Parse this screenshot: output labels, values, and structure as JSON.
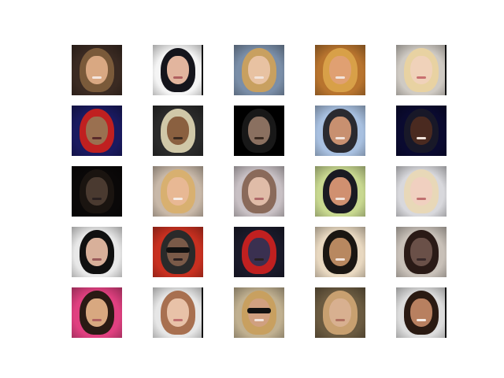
{
  "grid": {
    "rows": 5,
    "cols": 5,
    "tiles": [
      {
        "bg": "#3a2a22",
        "hair": "#7a5a3a",
        "skin": "#d9a882",
        "mouth": "#f4e6df",
        "glasses": false,
        "edge": false
      },
      {
        "bg": "#f4f4f4",
        "hair": "#15151c",
        "skin": "#e2b59e",
        "mouth": "#b06060",
        "glasses": false,
        "edge": true
      },
      {
        "bg": "#7a8ea8",
        "hair": "#c8a060",
        "skin": "#e8c2a2",
        "mouth": "#f2e4dc",
        "glasses": false,
        "edge": false
      },
      {
        "bg": "#b8742e",
        "hair": "#d8a048",
        "skin": "#e0a072",
        "mouth": "#f2e4dc",
        "glasses": false,
        "edge": false
      },
      {
        "bg": "#cfcac3",
        "hair": "#e8d2a2",
        "skin": "#f0d2ba",
        "mouth": "#c87070",
        "glasses": false,
        "edge": true
      },
      {
        "bg": "#1a1a60",
        "hair": "#c02020",
        "skin": "#9a7050",
        "mouth": "#5a2a2a",
        "glasses": false,
        "edge": false
      },
      {
        "bg": "#2a2a2a",
        "hair": "#d0c8a8",
        "skin": "#8a6040",
        "mouth": "#3a2a20",
        "glasses": false,
        "edge": false
      },
      {
        "bg": "#000000",
        "hair": "#181818",
        "skin": "#8a7060",
        "mouth": "#3a2a20",
        "glasses": false,
        "edge": false
      },
      {
        "bg": "#a8c0e0",
        "hair": "#2a2a30",
        "skin": "#c89070",
        "mouth": "#f2e4dc",
        "glasses": false,
        "edge": false
      },
      {
        "bg": "#0a0a30",
        "hair": "#181828",
        "skin": "#4a2a20",
        "mouth": "#f2e4dc",
        "glasses": false,
        "edge": false
      },
      {
        "bg": "#0a0808",
        "hair": "#1a1410",
        "skin": "#4a3a30",
        "mouth": "#2a2020",
        "glasses": false,
        "edge": false
      },
      {
        "bg": "#c8b8a8",
        "hair": "#d8b070",
        "skin": "#e8b894",
        "mouth": "#f6ece6",
        "glasses": false,
        "edge": false
      },
      {
        "bg": "#c8c0c4",
        "hair": "#8a6a5a",
        "skin": "#e0bca8",
        "mouth": "#b06a6a",
        "glasses": false,
        "edge": false
      },
      {
        "bg": "#c8d890",
        "hair": "#1a1a22",
        "skin": "#d09070",
        "mouth": "#f2e4dc",
        "glasses": false,
        "edge": false
      },
      {
        "bg": "#d8d8dc",
        "hair": "#e8d8b8",
        "skin": "#f0d0c0",
        "mouth": "#c07070",
        "glasses": false,
        "edge": false
      },
      {
        "bg": "#e8e8e8",
        "hair": "#101010",
        "skin": "#d8b09a",
        "mouth": "#9a5a5a",
        "glasses": false,
        "edge": false
      },
      {
        "bg": "#c83020",
        "hair": "#2a2a2a",
        "skin": "#7a5a48",
        "mouth": "#2a2020",
        "glasses": true,
        "edge": false
      },
      {
        "bg": "#1a1a2a",
        "hair": "#c02020",
        "skin": "#3a3050",
        "mouth": "#2a2020",
        "glasses": false,
        "edge": false
      },
      {
        "bg": "#e8d8c0",
        "hair": "#1a1612",
        "skin": "#b88860",
        "mouth": "#f2e4dc",
        "glasses": false,
        "edge": false
      },
      {
        "bg": "#c8c0b8",
        "hair": "#2a1a16",
        "skin": "#6a5048",
        "mouth": "#3a2a2a",
        "glasses": false,
        "edge": false
      },
      {
        "bg": "#e04080",
        "hair": "#2a1a14",
        "skin": "#d8a880",
        "mouth": "#b06060",
        "glasses": false,
        "edge": false
      },
      {
        "bg": "#e6e6e6",
        "hair": "#a87050",
        "skin": "#e8c2a8",
        "mouth": "#c07070",
        "glasses": false,
        "edge": true
      },
      {
        "bg": "#c0b090",
        "hair": "#c8a060",
        "skin": "#d0a080",
        "mouth": "#f2e4dc",
        "glasses": true,
        "edge": false
      },
      {
        "bg": "#6a5a40",
        "hair": "#c8a070",
        "skin": "#d8b090",
        "mouth": "#b07060",
        "glasses": false,
        "edge": false
      },
      {
        "bg": "#dcdcdc",
        "hair": "#2a1a12",
        "skin": "#b88060",
        "mouth": "#f6ece6",
        "glasses": false,
        "edge": true
      }
    ]
  }
}
